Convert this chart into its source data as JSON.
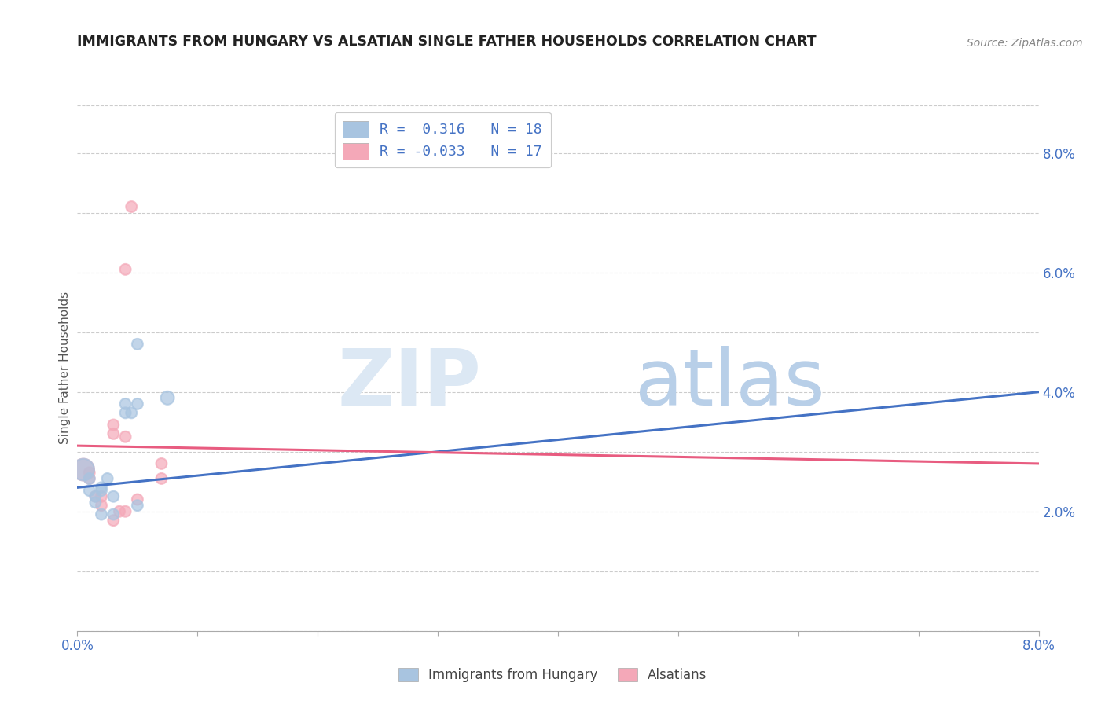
{
  "title": "IMMIGRANTS FROM HUNGARY VS ALSATIAN SINGLE FATHER HOUSEHOLDS CORRELATION CHART",
  "source": "Source: ZipAtlas.com",
  "ylabel": "Single Father Households",
  "xlim": [
    0.0,
    0.08
  ],
  "ylim": [
    0.0,
    0.088
  ],
  "legend_R_blue": "R =  0.316",
  "legend_N_blue": "N = 18",
  "legend_R_pink": "R = -0.033",
  "legend_N_pink": "N = 17",
  "blue_color": "#a8c4e0",
  "pink_color": "#f4a8b8",
  "blue_line_color": "#4472c4",
  "pink_line_color": "#e85c80",
  "watermark_zip": "ZIP",
  "watermark_atlas": "atlas",
  "blue_points": [
    [
      0.0005,
      0.027
    ],
    [
      0.001,
      0.0255
    ],
    [
      0.001,
      0.0235
    ],
    [
      0.0015,
      0.0215
    ],
    [
      0.0015,
      0.0225
    ],
    [
      0.002,
      0.0195
    ],
    [
      0.002,
      0.0235
    ],
    [
      0.0025,
      0.0255
    ],
    [
      0.002,
      0.024
    ],
    [
      0.003,
      0.0195
    ],
    [
      0.003,
      0.0225
    ],
    [
      0.004,
      0.038
    ],
    [
      0.004,
      0.0365
    ],
    [
      0.005,
      0.038
    ],
    [
      0.005,
      0.021
    ],
    [
      0.0045,
      0.0365
    ],
    [
      0.005,
      0.048
    ],
    [
      0.0075,
      0.039
    ]
  ],
  "blue_sizes": [
    400,
    100,
    100,
    100,
    100,
    100,
    100,
    100,
    100,
    100,
    100,
    100,
    100,
    100,
    100,
    100,
    100,
    150
  ],
  "pink_points": [
    [
      0.0005,
      0.027
    ],
    [
      0.001,
      0.0265
    ],
    [
      0.001,
      0.0255
    ],
    [
      0.0015,
      0.0225
    ],
    [
      0.002,
      0.0225
    ],
    [
      0.002,
      0.021
    ],
    [
      0.003,
      0.0345
    ],
    [
      0.003,
      0.033
    ],
    [
      0.003,
      0.0185
    ],
    [
      0.0035,
      0.02
    ],
    [
      0.004,
      0.0325
    ],
    [
      0.004,
      0.0605
    ],
    [
      0.004,
      0.02
    ],
    [
      0.0045,
      0.071
    ],
    [
      0.005,
      0.022
    ],
    [
      0.007,
      0.028
    ],
    [
      0.007,
      0.0255
    ]
  ],
  "pink_sizes": [
    400,
    100,
    100,
    100,
    100,
    100,
    100,
    100,
    100,
    100,
    100,
    100,
    100,
    100,
    100,
    100,
    100
  ],
  "blue_line_x": [
    0.0,
    0.08
  ],
  "blue_line_y": [
    0.024,
    0.04
  ],
  "pink_line_x": [
    0.0,
    0.08
  ],
  "pink_line_y": [
    0.031,
    0.028
  ]
}
